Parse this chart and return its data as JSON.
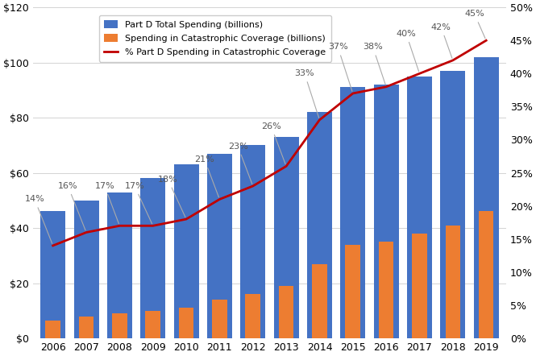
{
  "years": [
    2006,
    2007,
    2008,
    2009,
    2010,
    2011,
    2012,
    2013,
    2014,
    2015,
    2016,
    2017,
    2018,
    2019
  ],
  "total_spending": [
    46,
    50,
    53,
    58,
    63,
    67,
    70,
    73,
    82,
    91,
    92,
    95,
    97,
    102
  ],
  "catastrophic_spending": [
    6.5,
    8,
    9,
    10,
    11,
    14,
    16,
    19,
    27,
    34,
    35,
    38,
    41,
    46
  ],
  "pct_catastrophic": [
    14,
    16,
    17,
    17,
    18,
    21,
    23,
    26,
    33,
    37,
    38,
    40,
    42,
    45
  ],
  "pct_labels": [
    "14%",
    "16%",
    "17%",
    "17%",
    "18%",
    "21%",
    "23%",
    "26%",
    "33%",
    "37%",
    "38%",
    "40%",
    "42%",
    "45%"
  ],
  "bar_color_total": "#4472C4",
  "bar_color_catastrophic": "#ED7D31",
  "line_color": "#C00000",
  "ylim_left": [
    0,
    120
  ],
  "ylim_right": [
    0,
    50
  ],
  "yticks_left": [
    0,
    20,
    40,
    60,
    80,
    100,
    120
  ],
  "ytick_labels_left": [
    "$0",
    "$20",
    "$40",
    "$60",
    "$80",
    "$100",
    "$120"
  ],
  "yticks_right": [
    0,
    5,
    10,
    15,
    20,
    25,
    30,
    35,
    40,
    45,
    50
  ],
  "ytick_labels_right": [
    "0%",
    "5%",
    "10%",
    "15%",
    "20%",
    "25%",
    "30%",
    "35%",
    "40%",
    "45%",
    "50%"
  ],
  "legend_labels": [
    "Part D Total Spending (billions)",
    "Spending in Catastrophic Coverage (billions)",
    "% Part D Spending in Catastrophic Coverage"
  ],
  "background_color": "#FFFFFF",
  "grid_color": "#D3D3D3",
  "label_offset_x": [
    -0.4,
    -0.4,
    -0.3,
    -0.4,
    -0.4,
    -0.3,
    -0.3,
    -0.3,
    -0.3,
    -0.3,
    -0.3,
    -0.3,
    -0.3,
    -0.3
  ],
  "label_offset_y": [
    6,
    6,
    5,
    5,
    5,
    5,
    5,
    5,
    6,
    6,
    5,
    5,
    5,
    4
  ]
}
